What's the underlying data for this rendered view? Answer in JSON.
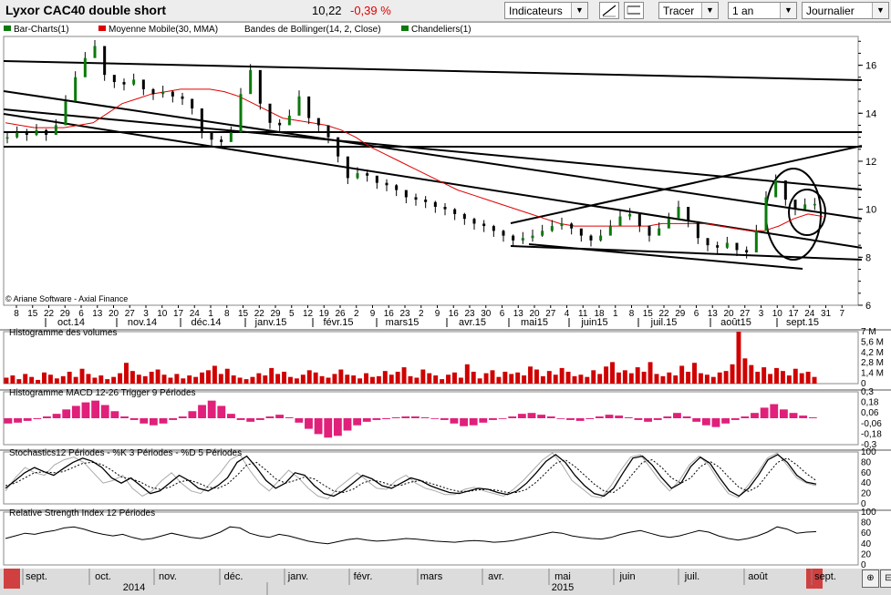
{
  "header": {
    "title": "Lyxor CAC40 double short",
    "price": "10,22",
    "change": "-0,39 %",
    "indicators_label": "Indicateurs",
    "draw_label": "Tracer",
    "period_label": "1 an",
    "interval_label": "Journalier"
  },
  "legend": [
    {
      "label": "Bar-Charts(1)",
      "color": "#0a7a0a"
    },
    {
      "label": "Moyenne Mobile(30, MMA)",
      "color": "#e00000"
    },
    {
      "label": "Bandes de Bollinger(14, 2, Close)",
      "color": ""
    },
    {
      "label": "Chandeliers(1)",
      "color": "#0a7a0a"
    }
  ],
  "credit": "© Ariane Software - Axial Finance",
  "panels": {
    "volume_title": "Histogramme des volumes",
    "macd_title": "Histogramme MACD 12-26   Trigger 9 Périodes",
    "stoch_title": "Stochastics12 Périodes  -  %K 3 Périodes  -  %D 5 Périodes",
    "rsi_title": "Relative Strength Index 12 Périodes"
  },
  "chart_data": [
    {
      "type": "line",
      "title": "Lyxor CAC40 double short",
      "y_ticks": [
        6,
        8,
        10,
        12,
        14,
        16
      ],
      "ylim": [
        6,
        17.2
      ],
      "x_day_labels": [
        "8",
        "15",
        "22",
        "29",
        "6",
        "13",
        "20",
        "27",
        "3",
        "10",
        "17",
        "24",
        "1",
        "8",
        "15",
        "22",
        "29",
        "5",
        "12",
        "19",
        "26",
        "2",
        "9",
        "16",
        "23",
        "2",
        "9",
        "16",
        "23",
        "30",
        "6",
        "13",
        "20",
        "27",
        "4",
        "11",
        "18",
        "1",
        "8",
        "15",
        "22",
        "29",
        "6",
        "13",
        "20",
        "27",
        "3",
        "10",
        "17",
        "24",
        "31",
        "7"
      ],
      "x_month_labels": [
        "oct.14",
        "nov.14",
        "déc.14",
        "janv.15",
        "févr.15",
        "mars15",
        "avr.15",
        "mai15",
        "juin15",
        "juil.15",
        "août15",
        "sept.15"
      ],
      "series": [
        {
          "name": "Bar-Charts(1)",
          "values": [
            13,
            13.2,
            13.1,
            13.3,
            13.1,
            13.5,
            14.5,
            15.5,
            16.3,
            16.8,
            15.6,
            15.3,
            15.2,
            15.4,
            15,
            14.8,
            14.9,
            14.7,
            14.6,
            14.2,
            13.2,
            12.9,
            12.8,
            13.2,
            14.8,
            15.8,
            14.4,
            13.6,
            13.5,
            13.9,
            14.7,
            13.8,
            13.5,
            13,
            12.2,
            11.3,
            11.5,
            11.4,
            11.1,
            11,
            10.8,
            10.5,
            10.4,
            10.3,
            10.1,
            10,
            9.8,
            9.6,
            9.4,
            9.3,
            9.1,
            8.9,
            8.7,
            8.8,
            8.9,
            9.1,
            9.3,
            9.4,
            9.2,
            8.9,
            8.7,
            8.9,
            9.3,
            9.7,
            9.8,
            9.3,
            8.9,
            9.2,
            9.6,
            10.1,
            9.5,
            8.8,
            8.5,
            8.4,
            8.6,
            8.3,
            8.2,
            9.1,
            10.5,
            11.2,
            10.4,
            10,
            10.2,
            10.22
          ]
        },
        {
          "name": "Moyenne Mobile(30, MMA)",
          "values": [
            13.6,
            13.5,
            13.4,
            13.4,
            13.4,
            13.5,
            13.6,
            14,
            14.4,
            14.6,
            14.8,
            14.9,
            15,
            15,
            15,
            14.9,
            14.7,
            14.4,
            14.1,
            13.8,
            13.7,
            13.6,
            13.5,
            13.3,
            13,
            12.6,
            12.3,
            12,
            11.7,
            11.4,
            11.1,
            10.8,
            10.6,
            10.4,
            10.2,
            10,
            9.8,
            9.6,
            9.4,
            9.3,
            9.3,
            9.3,
            9.3,
            9.3,
            9.3,
            9.4,
            9.4,
            9.4,
            9.4,
            9.3,
            9.2,
            9.1,
            9.1,
            9.3,
            9.6,
            9.8,
            9.7
          ]
        }
      ]
    },
    {
      "type": "bar",
      "title": "Histogramme des volumes",
      "y_ticks": [
        "0",
        "1,4 M",
        "2,8 M",
        "4,2 M",
        "5,6 M",
        "7 M"
      ],
      "ylim": [
        0,
        7
      ],
      "values": [
        0.8,
        1.1,
        0.6,
        1.3,
        0.9,
        0.5,
        1.5,
        1.2,
        0.7,
        1,
        1.6,
        0.9,
        2,
        1.3,
        0.8,
        1.1,
        0.6,
        0.9,
        1.4,
        2.8,
        1.7,
        1.2,
        1,
        1.6,
        1.9,
        1.2,
        0.8,
        1.3,
        0.7,
        1.1,
        0.9,
        1.5,
        1.8,
        2.4,
        1.3,
        2,
        1.1,
        0.8,
        0.6,
        0.9,
        1.4,
        1.1,
        2.1,
        1.3,
        1.6,
        0.9,
        0.7,
        1.2,
        1.8,
        1.5,
        1,
        0.8,
        1.3,
        1.9,
        1.2,
        1.1,
        0.7,
        1.4,
        0.9,
        1,
        1.7,
        1.2,
        1.6,
        2.2,
        1,
        0.8,
        1.9,
        1.4,
        1.1,
        0.6,
        1.2,
        1.5,
        0.8,
        2.6,
        1.6,
        0.7,
        1.4,
        1.8,
        0.9,
        1.6,
        1.3,
        1.5,
        1.1,
        2.3,
        1.9,
        1,
        1.7,
        1.2,
        2.1,
        1.6,
        1,
        1.2,
        0.9,
        1.8,
        1.3,
        2.3,
        2.9,
        1.5,
        1.8,
        1.4,
        2.2,
        1.6,
        2.9,
        1.3,
        1,
        1.5,
        1.1,
        2.4,
        1.6,
        2.8,
        1.4,
        1.2,
        0.9,
        1.5,
        1.7,
        2.6,
        7,
        3.4,
        2.5,
        1.6,
        2.2,
        1.3,
        2.1,
        1.7,
        1.1,
        2,
        1.4,
        1.6,
        0.9
      ]
    },
    {
      "type": "bar",
      "title": "Histogramme MACD 12-26   Trigger 9 Périodes",
      "y_ticks": [
        "-0,3",
        "-0,18",
        "-0,06",
        "0,06",
        "0,18",
        "0,3"
      ],
      "ylim": [
        -0.3,
        0.3
      ],
      "values": [
        -0.06,
        -0.05,
        -0.03,
        -0.01,
        0.02,
        0.05,
        0.1,
        0.14,
        0.18,
        0.2,
        0.15,
        0.08,
        0.02,
        -0.02,
        -0.06,
        -0.08,
        -0.06,
        -0.02,
        0.02,
        0.08,
        0.15,
        0.2,
        0.14,
        0.05,
        -0.02,
        -0.04,
        -0.02,
        0.02,
        0.04,
        0.01,
        -0.05,
        -0.12,
        -0.18,
        -0.22,
        -0.2,
        -0.14,
        -0.08,
        -0.04,
        -0.02,
        -0.01,
        0.01,
        0.02,
        0.02,
        0.01,
        0,
        -0.02,
        -0.06,
        -0.09,
        -0.08,
        -0.05,
        -0.02,
        0,
        0.02,
        0.05,
        0.06,
        0.04,
        0.02,
        0,
        -0.02,
        -0.03,
        -0.01,
        0.02,
        0.04,
        0.03,
        0.01,
        -0.02,
        -0.04,
        -0.02,
        0.02,
        0.06,
        0.02,
        -0.04,
        -0.08,
        -0.1,
        -0.06,
        -0.02,
        0.02,
        0.06,
        0.12,
        0.16,
        0.1,
        0.06,
        0.03,
        0.01
      ]
    },
    {
      "type": "line",
      "title": "Stochastics12 Périodes  -  %K 3 Périodes  -  %D 5 Périodes",
      "y_ticks": [
        0,
        20,
        40,
        60,
        80,
        100
      ],
      "ylim": [
        0,
        100
      ],
      "series": [
        {
          "name": "%K 3 Périodes",
          "values": [
            30,
            45,
            60,
            70,
            62,
            55,
            68,
            80,
            88,
            82,
            70,
            50,
            40,
            50,
            35,
            20,
            25,
            40,
            55,
            45,
            30,
            25,
            35,
            50,
            80,
            92,
            70,
            45,
            30,
            40,
            60,
            55,
            35,
            20,
            15,
            25,
            40,
            55,
            48,
            35,
            30,
            40,
            50,
            45,
            35,
            28,
            22,
            20,
            25,
            30,
            28,
            22,
            18,
            25,
            40,
            60,
            82,
            95,
            80,
            55,
            35,
            20,
            15,
            30,
            60,
            88,
            92,
            75,
            50,
            30,
            40,
            72,
            90,
            78,
            50,
            25,
            15,
            30,
            55,
            85,
            95,
            80,
            55,
            42,
            38
          ]
        },
        {
          "name": "%D 5 Périodes",
          "values": [
            35,
            40,
            50,
            60,
            62,
            60,
            62,
            70,
            78,
            80,
            76,
            65,
            52,
            48,
            42,
            32,
            28,
            32,
            42,
            46,
            40,
            32,
            30,
            38,
            55,
            75,
            80,
            65,
            48,
            40,
            45,
            52,
            48,
            36,
            25,
            22,
            28,
            40,
            46,
            42,
            36,
            36,
            42,
            45,
            40,
            34,
            28,
            24,
            24,
            27,
            28,
            26,
            22,
            22,
            28,
            42,
            60,
            78,
            85,
            72,
            55,
            38,
            25,
            22,
            35,
            58,
            80,
            85,
            70,
            50,
            40,
            50,
            72,
            82,
            70,
            50,
            32,
            24,
            34,
            58,
            80,
            88,
            75,
            58,
            45
          ]
        },
        {
          "name": "",
          "values": [
            25,
            50,
            70,
            60,
            55,
            75,
            85,
            90,
            80,
            60,
            40,
            45,
            55,
            30,
            15,
            25,
            45,
            60,
            40,
            25,
            20,
            40,
            60,
            85,
            95,
            65,
            40,
            25,
            45,
            65,
            50,
            30,
            15,
            10,
            30,
            45,
            60,
            45,
            30,
            28,
            45,
            55,
            40,
            30,
            25,
            18,
            18,
            28,
            32,
            25,
            20,
            15,
            28,
            45,
            65,
            85,
            98,
            75,
            45,
            30,
            15,
            12,
            35,
            65,
            90,
            95,
            70,
            45,
            25,
            45,
            75,
            92,
            75,
            45,
            20,
            12,
            35,
            60,
            88,
            98,
            75,
            50,
            40,
            35
          ]
        }
      ]
    },
    {
      "type": "line",
      "title": "Relative Strength Index 12 Périodes",
      "y_ticks": [
        0,
        20,
        40,
        60,
        80,
        100
      ],
      "ylim": [
        0,
        100
      ],
      "series": [
        {
          "name": "Relative Strength Index 12 Périodes",
          "values": [
            50,
            55,
            60,
            58,
            62,
            65,
            70,
            72,
            68,
            62,
            58,
            55,
            58,
            52,
            48,
            50,
            55,
            60,
            56,
            52,
            50,
            55,
            62,
            72,
            70,
            60,
            55,
            52,
            58,
            55,
            50,
            45,
            42,
            40,
            44,
            48,
            50,
            47,
            45,
            46,
            48,
            50,
            49,
            47,
            45,
            44,
            43,
            45,
            46,
            45,
            43,
            44,
            46,
            50,
            54,
            58,
            62,
            60,
            55,
            52,
            50,
            49,
            52,
            58,
            62,
            65,
            60,
            55,
            52,
            55,
            60,
            65,
            62,
            55,
            50,
            47,
            50,
            55,
            62,
            72,
            68,
            60,
            62,
            63
          ]
        }
      ]
    }
  ],
  "navigator": {
    "months": [
      "sept.",
      "oct.",
      "nov.",
      "déc.",
      "janv.",
      "févr.",
      "mars",
      "avr.",
      "mai",
      "juin",
      "juil.",
      "août",
      "sept."
    ],
    "years": [
      "2014",
      "2015"
    ]
  }
}
